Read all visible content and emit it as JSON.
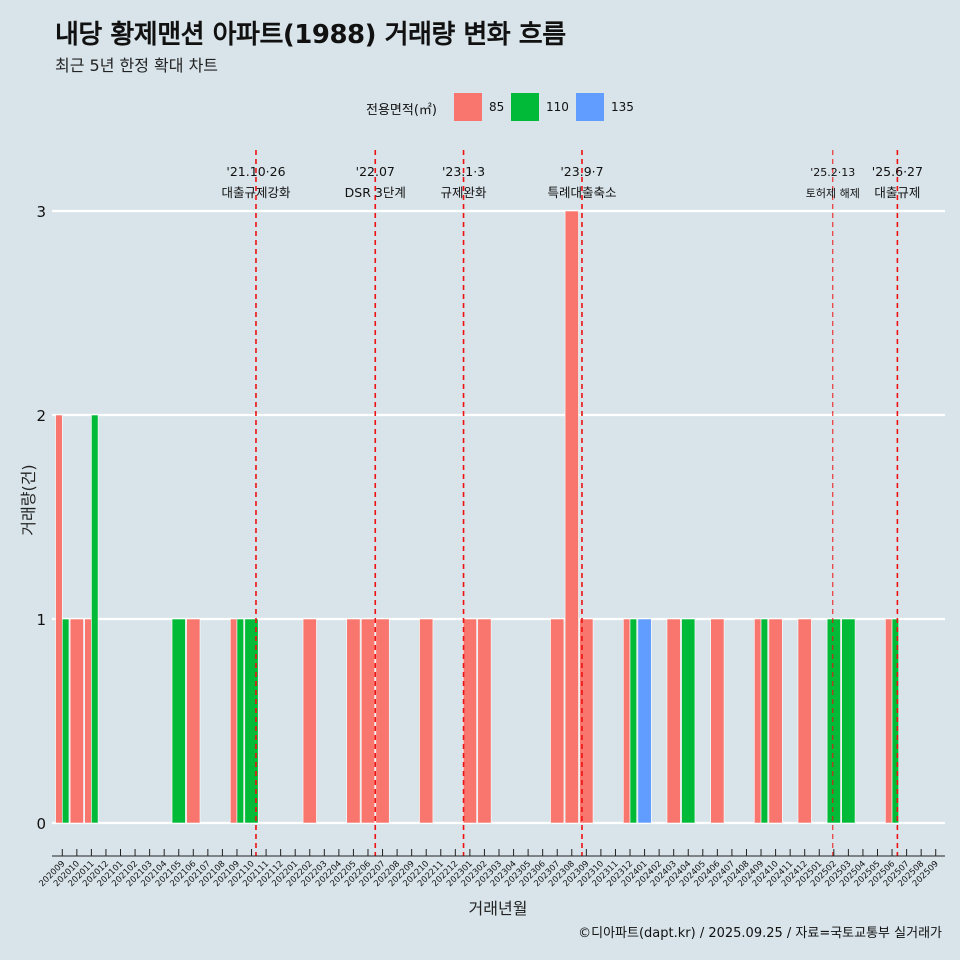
{
  "title": "내당 황제맨션 아파트(1988) 거래량 변화 흐름",
  "subtitle": "최근 5년 한정 확대 차트",
  "caption": "©디아파트(dapt.kr) / 2025.09.25 / 자료=국토교통부 실거래가",
  "legend": {
    "title": "전용면적(㎡)",
    "items": [
      {
        "label": "85",
        "color": "#f8766d"
      },
      {
        "label": "110",
        "color": "#00ba38"
      },
      {
        "label": "135",
        "color": "#619cff"
      }
    ]
  },
  "chart_data": {
    "type": "bar",
    "xlabel": "거래년월",
    "ylabel": "거래량(건)",
    "ylim": [
      0,
      3
    ],
    "yticks": [
      0,
      1,
      2,
      3
    ],
    "grid": true,
    "legend_position": "top",
    "categories": [
      "202009",
      "202010",
      "202011",
      "202012",
      "202101",
      "202102",
      "202103",
      "202104",
      "202105",
      "202106",
      "202107",
      "202108",
      "202109",
      "202110",
      "202111",
      "202112",
      "202201",
      "202202",
      "202203",
      "202204",
      "202205",
      "202206",
      "202207",
      "202208",
      "202209",
      "202210",
      "202211",
      "202212",
      "202301",
      "202302",
      "202303",
      "202304",
      "202305",
      "202306",
      "202307",
      "202308",
      "202309",
      "202310",
      "202311",
      "202312",
      "202401",
      "202402",
      "202403",
      "202404",
      "202405",
      "202406",
      "202407",
      "202408",
      "202409",
      "202410",
      "202411",
      "202412",
      "202501",
      "202502",
      "202503",
      "202504",
      "202505",
      "202506",
      "202507",
      "202508",
      "202509"
    ],
    "series": [
      {
        "name": "85",
        "color": "#f8766d",
        "values": [
          2,
          1,
          1,
          0,
          0,
          0,
          0,
          0,
          0,
          1,
          0,
          0,
          1,
          0,
          0,
          0,
          0,
          1,
          0,
          0,
          1,
          1,
          1,
          0,
          0,
          1,
          0,
          0,
          1,
          1,
          0,
          0,
          0,
          0,
          1,
          3,
          1,
          0,
          0,
          1,
          0,
          0,
          1,
          0,
          0,
          1,
          0,
          0,
          1,
          1,
          0,
          1,
          0,
          0,
          0,
          0,
          0,
          1,
          0,
          0,
          0
        ]
      },
      {
        "name": "110",
        "color": "#00ba38",
        "values": [
          1,
          0,
          2,
          0,
          0,
          0,
          0,
          0,
          1,
          0,
          0,
          0,
          1,
          1,
          0,
          0,
          0,
          0,
          0,
          0,
          0,
          0,
          0,
          0,
          0,
          0,
          0,
          0,
          0,
          0,
          0,
          0,
          0,
          0,
          0,
          0,
          0,
          0,
          0,
          1,
          0,
          0,
          0,
          1,
          0,
          0,
          0,
          0,
          1,
          0,
          0,
          0,
          0,
          1,
          1,
          0,
          0,
          1,
          0,
          0,
          0
        ]
      },
      {
        "name": "135",
        "color": "#619cff",
        "values": [
          0,
          0,
          0,
          0,
          0,
          0,
          0,
          0,
          0,
          0,
          0,
          0,
          0,
          0,
          0,
          0,
          0,
          0,
          0,
          0,
          0,
          0,
          0,
          0,
          0,
          0,
          0,
          0,
          0,
          0,
          0,
          0,
          0,
          0,
          0,
          0,
          0,
          0,
          0,
          0,
          1,
          0,
          0,
          0,
          0,
          0,
          0,
          0,
          0,
          0,
          0,
          0,
          0,
          0,
          0,
          0,
          0,
          0,
          0,
          0,
          0
        ]
      }
    ],
    "annotations": [
      {
        "date": "2021-10-26",
        "line1": "'21.10·26",
        "line2": "대출규제강화"
      },
      {
        "date": "2022-07-01",
        "line1": "'22.07",
        "line2": "DSR 3단계"
      },
      {
        "date": "2023-01-03",
        "line1": "'23.1·3",
        "line2": "규제완화"
      },
      {
        "date": "2023-09-07",
        "line1": "'23.9·7",
        "line2": "특례대출축소"
      },
      {
        "date": "2025-02-13",
        "line1": "'25.2·13",
        "line2": "토허제 해제"
      },
      {
        "date": "2025-06-27",
        "line1": "'25.6·27",
        "line2": "대출규제"
      }
    ]
  }
}
